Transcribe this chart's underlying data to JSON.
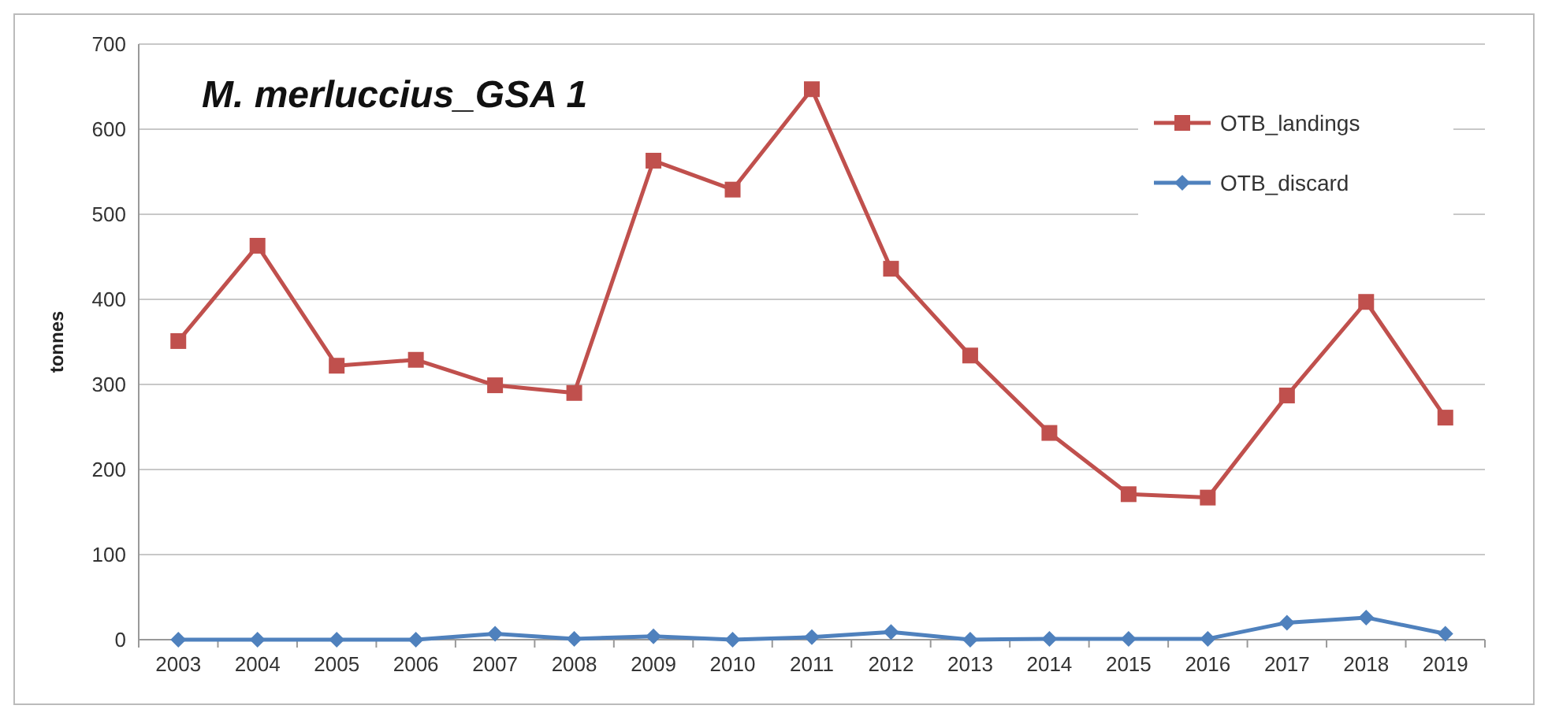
{
  "chart_data": {
    "type": "line",
    "title": "M. merluccius_GSA 1",
    "ylabel": "tonnes",
    "categories": [
      "2003",
      "2004",
      "2005",
      "2006",
      "2007",
      "2008",
      "2009",
      "2010",
      "2011",
      "2012",
      "2013",
      "2014",
      "2015",
      "2016",
      "2017",
      "2018",
      "2019"
    ],
    "series": [
      {
        "name": "OTB_landings",
        "color": "#c0504d",
        "marker": "square",
        "values": [
          351,
          463,
          322,
          329,
          299,
          290,
          563,
          529,
          647,
          436,
          334,
          243,
          171,
          167,
          287,
          397,
          261
        ]
      },
      {
        "name": "OTB_discard",
        "color": "#4f81bd",
        "marker": "diamond",
        "values": [
          0,
          0,
          0,
          0,
          7,
          1,
          4,
          0,
          3,
          9,
          0,
          1,
          1,
          1,
          20,
          26,
          7
        ]
      }
    ],
    "ylim": [
      0,
      700
    ],
    "yticks": [
      0,
      100,
      200,
      300,
      400,
      500,
      600,
      700
    ],
    "grid": "y",
    "legend": "top right",
    "line_style": "solid"
  }
}
